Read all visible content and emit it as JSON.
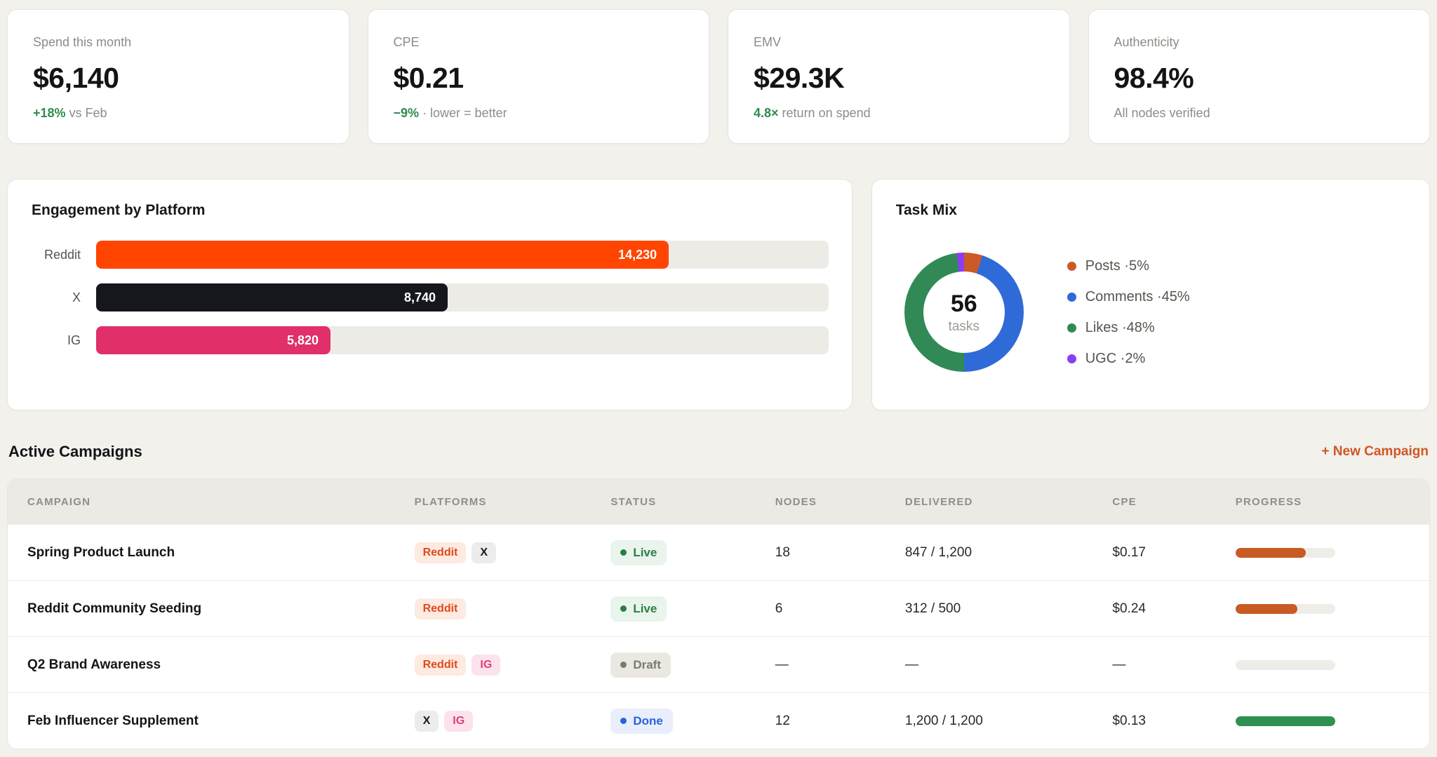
{
  "kpis": [
    {
      "label": "Spend this month",
      "value": "$6,140",
      "sub_accent": "+18%",
      "sub_text": " vs Feb",
      "accent_color": "#2e8b4f"
    },
    {
      "label": "CPE",
      "value": "$0.21",
      "sub_accent": "−9%",
      "sub_text": " · lower = better",
      "accent_color": "#2e8b4f"
    },
    {
      "label": "EMV",
      "value": "$29.3K",
      "sub_accent": "4.8×",
      "sub_text": " return on spend",
      "accent_color": "#2e8b4f"
    },
    {
      "label": "Authenticity",
      "value": "98.4%",
      "sub_accent": "",
      "sub_text": "All nodes verified",
      "accent_color": "#2e8b4f"
    }
  ],
  "engagement": {
    "title": "Engagement by Platform",
    "scale_max": 18200,
    "bars": [
      {
        "label": "Reddit",
        "value": 14230,
        "display": "14,230",
        "color": "#ff4500"
      },
      {
        "label": "X",
        "value": 8740,
        "display": "8,740",
        "color": "#15171c"
      },
      {
        "label": "IG",
        "value": 5820,
        "display": "5,820",
        "color": "#e02f69"
      }
    ]
  },
  "task_mix": {
    "title": "Task Mix",
    "center_value": "56",
    "center_label": "tasks",
    "slices": [
      {
        "label": "Posts",
        "percent": 5,
        "display": "Posts ·5%",
        "color": "#cb5a27"
      },
      {
        "label": "Comments",
        "percent": 45,
        "display": "Comments ·45%",
        "color": "#2f6ad9"
      },
      {
        "label": "Likes",
        "percent": 48,
        "display": "Likes ·48%",
        "color": "#318a55"
      },
      {
        "label": "UGC",
        "percent": 2,
        "display": "UGC ·2%",
        "color": "#8b3df2"
      }
    ]
  },
  "campaigns": {
    "heading": "Active Campaigns",
    "new_campaign_label": "+ New Campaign",
    "columns": [
      "CAMPAIGN",
      "PLATFORMS",
      "STATUS",
      "NODES",
      "DELIVERED",
      "CPE",
      "PROGRESS"
    ],
    "rows": [
      {
        "name": "Spring Product Launch",
        "platforms": [
          {
            "label": "Reddit",
            "type": "reddit"
          },
          {
            "label": "X",
            "type": "x"
          }
        ],
        "status": {
          "label": "Live",
          "type": "live"
        },
        "nodes": "18",
        "delivered": "847 / 1,200",
        "cpe": "$0.17",
        "progress": 0.706,
        "progress_color": "#c85a24"
      },
      {
        "name": "Reddit Community Seeding",
        "platforms": [
          {
            "label": "Reddit",
            "type": "reddit"
          }
        ],
        "status": {
          "label": "Live",
          "type": "live"
        },
        "nodes": "6",
        "delivered": "312 / 500",
        "cpe": "$0.24",
        "progress": 0.624,
        "progress_color": "#c85a24"
      },
      {
        "name": "Q2 Brand Awareness",
        "platforms": [
          {
            "label": "Reddit",
            "type": "reddit"
          },
          {
            "label": "IG",
            "type": "ig"
          }
        ],
        "status": {
          "label": "Draft",
          "type": "draft"
        },
        "nodes": "—",
        "delivered": "—",
        "cpe": "—",
        "progress": 0,
        "progress_color": "#c85a24"
      },
      {
        "name": "Feb Influencer Supplement",
        "platforms": [
          {
            "label": "X",
            "type": "x"
          },
          {
            "label": "IG",
            "type": "ig"
          }
        ],
        "status": {
          "label": "Done",
          "type": "done"
        },
        "nodes": "12",
        "delivered": "1,200 / 1,200",
        "cpe": "$0.13",
        "progress": 1,
        "progress_color": "#2e9150"
      }
    ]
  },
  "chart_data": [
    {
      "type": "bar",
      "orientation": "horizontal",
      "title": "Engagement by Platform",
      "categories": [
        "Reddit",
        "X",
        "IG"
      ],
      "values": [
        14230,
        8740,
        5820
      ],
      "value_labels": [
        "14,230",
        "8,740",
        "5,820"
      ],
      "colors": [
        "#ff4500",
        "#15171c",
        "#e02f69"
      ],
      "xlim": [
        0,
        18200
      ],
      "grid": false,
      "legend_position": "none"
    },
    {
      "type": "pie",
      "subtype": "donut",
      "title": "Task Mix",
      "center_text": [
        "56",
        "tasks"
      ],
      "labels": [
        "Posts",
        "Comments",
        "Likes",
        "UGC"
      ],
      "values": [
        5,
        45,
        48,
        2
      ],
      "unit": "percent",
      "colors": [
        "#cb5a27",
        "#2f6ad9",
        "#318a55",
        "#8b3df2"
      ],
      "legend_position": "right"
    }
  ]
}
